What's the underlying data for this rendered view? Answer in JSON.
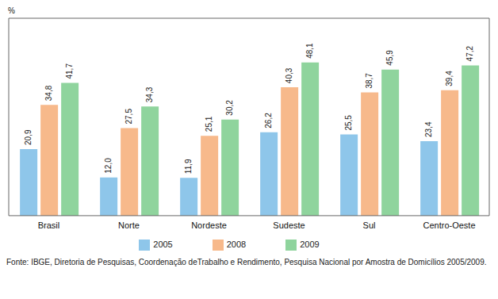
{
  "chart_data": {
    "type": "bar",
    "y_label": "%",
    "source": "Fonte: IBGE, Diretoria de Pesquisas, Coordenação deTrabalho e Rendimento, Pesquisa Nacional por Amostra de Domicílios 2005/2009.",
    "categories": [
      "Brasil",
      "Norte",
      "Nordeste",
      "Sudeste",
      "Sul",
      "Centro-Oeste"
    ],
    "series": [
      {
        "name": "2005",
        "color": "#8ec6ea",
        "values": [
          20.9,
          12.0,
          11.9,
          26.2,
          25.5,
          23.4
        ],
        "value_labels": [
          "20,9",
          "12,0",
          "11,9",
          "26,2",
          "25,5",
          "23,4"
        ]
      },
      {
        "name": "2008",
        "color": "#f7b98b",
        "values": [
          34.8,
          27.5,
          25.1,
          40.3,
          38.7,
          39.4
        ],
        "value_labels": [
          "34,8",
          "27,5",
          "25,1",
          "40,3",
          "38,7",
          "39,4"
        ]
      },
      {
        "name": "2009",
        "color": "#8fd49d",
        "values": [
          41.7,
          34.3,
          30.2,
          48.1,
          45.9,
          47.2
        ],
        "value_labels": [
          "41,7",
          "34,3",
          "30,2",
          "48,1",
          "45,9",
          "47,2"
        ]
      }
    ],
    "ylim": [
      0,
      62
    ],
    "yticks": [],
    "tick_labels": "x",
    "data_labels": true,
    "legend": "bottom"
  }
}
